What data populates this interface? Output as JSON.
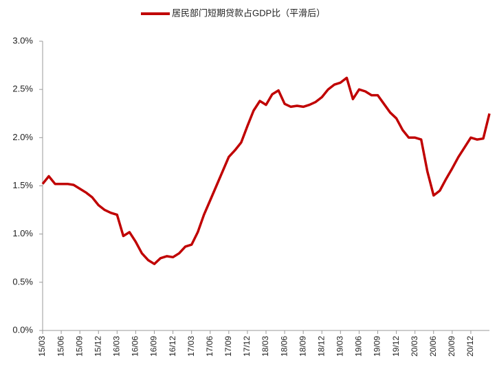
{
  "chart_data": {
    "type": "line",
    "categories": [
      "15/03",
      null,
      null,
      "15/06",
      null,
      null,
      "15/09",
      null,
      null,
      "15/12",
      null,
      null,
      "16/03",
      null,
      null,
      "16/06",
      null,
      null,
      "16/09",
      null,
      null,
      "16/12",
      null,
      null,
      "17/03",
      null,
      null,
      "17/06",
      null,
      null,
      "17/09",
      null,
      null,
      "17/12",
      null,
      null,
      "18/03",
      null,
      null,
      "18/06",
      null,
      null,
      "18/09",
      null,
      null,
      "18/12",
      null,
      null,
      "19/03",
      null,
      null,
      "19/06",
      null,
      null,
      "19/09",
      null,
      null,
      "19/12",
      null,
      null,
      "20/03",
      null,
      null,
      "20/06",
      null,
      null,
      "20/09",
      null,
      null,
      "20/12",
      null,
      null,
      null
    ],
    "series": [
      {
        "name": "居民部门短期贷款占GDP比（平滑后）",
        "color": "#c00000",
        "values": [
          1.52,
          1.6,
          1.52,
          1.52,
          1.52,
          1.51,
          1.47,
          1.43,
          1.38,
          1.3,
          1.25,
          1.22,
          1.2,
          0.98,
          1.02,
          0.92,
          0.8,
          0.73,
          0.69,
          0.75,
          0.77,
          0.76,
          0.8,
          0.87,
          0.89,
          1.02,
          1.2,
          1.35,
          1.5,
          1.65,
          1.8,
          1.87,
          1.95,
          2.12,
          2.28,
          2.38,
          2.34,
          2.45,
          2.49,
          2.35,
          2.32,
          2.33,
          2.32,
          2.34,
          2.37,
          2.42,
          2.5,
          2.55,
          2.57,
          2.62,
          2.4,
          2.5,
          2.48,
          2.44,
          2.44,
          2.35,
          2.26,
          2.2,
          2.08,
          2.0,
          2.0,
          1.98,
          1.65,
          1.4,
          1.45,
          1.57,
          1.68,
          1.8,
          1.9,
          2.0,
          1.98,
          1.99,
          2.25
        ]
      }
    ],
    "ylim": [
      0,
      3
    ],
    "yticks": [
      {
        "value": 0,
        "label": "0.0%"
      },
      {
        "value": 0.5,
        "label": "0.5%"
      },
      {
        "value": 1,
        "label": "1.0%"
      },
      {
        "value": 1.5,
        "label": "1.5%"
      },
      {
        "value": 2,
        "label": "2.0%"
      },
      {
        "value": 2.5,
        "label": "2.5%"
      },
      {
        "value": 3,
        "label": "3.0%"
      }
    ],
    "legend": "top",
    "grid": false
  }
}
